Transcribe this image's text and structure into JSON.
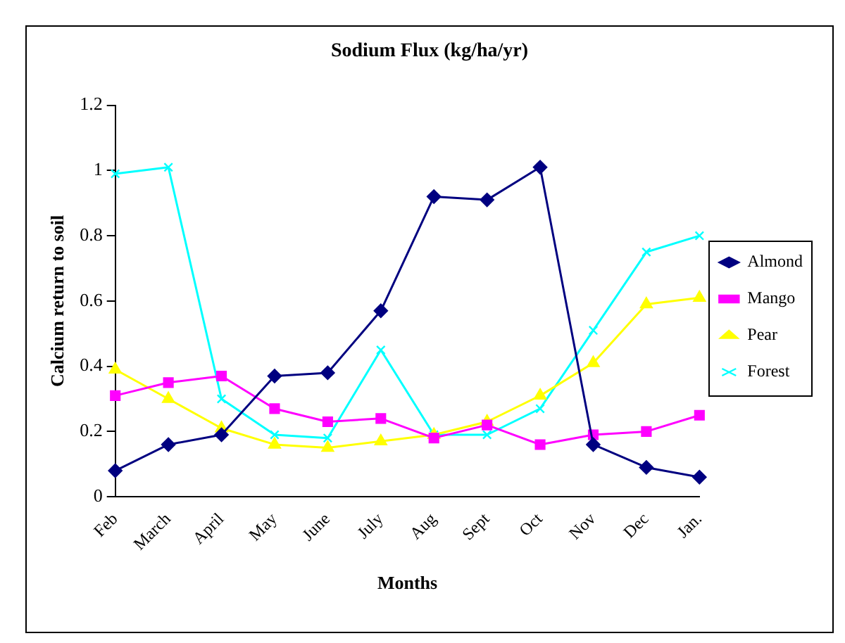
{
  "chart_data": {
    "type": "line",
    "title": "Sodium Flux (kg/ha/yr)",
    "xlabel": "Months",
    "ylabel": "Calcium return to soil",
    "categories": [
      "Feb",
      "March",
      "April",
      "May",
      "June",
      "July",
      "Aug",
      "Sept",
      "Oct",
      "Nov",
      "Dec",
      "Jan."
    ],
    "series": [
      {
        "name": "Almond",
        "color": "#000080",
        "marker": "diamond",
        "values": [
          0.08,
          0.16,
          0.19,
          0.37,
          0.38,
          0.57,
          0.92,
          0.91,
          1.01,
          0.16,
          0.09,
          0.06
        ]
      },
      {
        "name": "Mango",
        "color": "#ff00ff",
        "marker": "square",
        "values": [
          0.31,
          0.35,
          0.37,
          0.27,
          0.23,
          0.24,
          0.18,
          0.22,
          0.16,
          0.19,
          0.2,
          0.25
        ]
      },
      {
        "name": "Pear",
        "color": "#ffff00",
        "marker": "triangle",
        "values": [
          0.39,
          0.3,
          0.21,
          0.16,
          0.15,
          0.17,
          0.19,
          0.23,
          0.31,
          0.41,
          0.59,
          0.61
        ]
      },
      {
        "name": "Forest",
        "color": "#00ffff",
        "marker": "cross",
        "values": [
          0.99,
          1.01,
          0.3,
          0.19,
          0.18,
          0.45,
          0.19,
          0.19,
          0.27,
          0.51,
          0.75,
          0.8
        ]
      }
    ],
    "ylim": [
      0,
      1.2
    ],
    "yticks": [
      0,
      0.2,
      0.4,
      0.6,
      0.8,
      1,
      1.2
    ],
    "grid": false,
    "legend": "right"
  }
}
